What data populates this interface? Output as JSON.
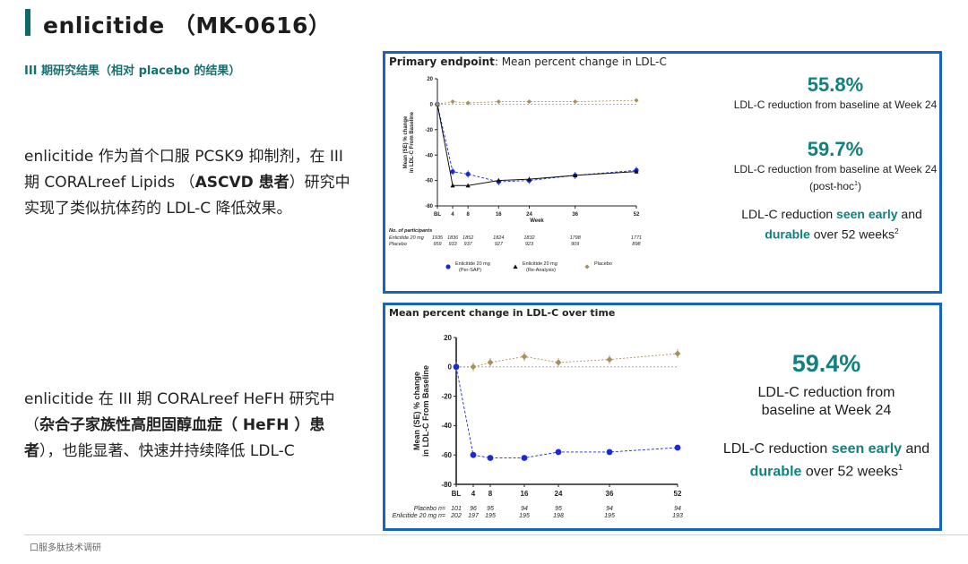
{
  "header": {
    "title": "enlicitide （MK-0616）",
    "subtitle": "III 期研究结果（相对 placebo 的结果）"
  },
  "left": {
    "para1": {
      "pre": "enlicitide 作为首个口服 PCSK9 抑制剂，在 III 期 CORALreef Lipids （",
      "bold": "ASCVD 患者",
      "post": "）研究中实现了类似抗体药的 LDL-C 降低效果。"
    },
    "para2": {
      "pre": "enlicitide 在 III 期 CORALreef HeFH 研究中（",
      "bold": "杂合子家族性高胆固醇血症（ HeFH ）患者",
      "post": "），也能显著、快速并持续降低 LDL-C"
    }
  },
  "footer": "口服多肽技术调研",
  "panel1": {
    "title_bold": "Primary endpoint",
    "title_rest": ": Mean percent change in LDL-C",
    "stat1": "55.8%",
    "stat1_text": "LDL-C reduction from baseline at Week 24",
    "stat2": "59.7%",
    "stat2_text": "LDL-C reduction from baseline at Week 24 (post-hoc",
    "stat2_sup": "1",
    "stat2_close": ")",
    "stat3_pre": "LDL-C reduction ",
    "stat3_hl1": "seen early",
    "stat3_mid": " and ",
    "stat3_hl2": "durable",
    "stat3_post": " over 52 weeks",
    "stat3_sup": "2"
  },
  "panel2": {
    "title": "Mean percent change in LDL-C over time",
    "stat1": "59.4%",
    "stat1_text": "LDL-C reduction from baseline at Week 24",
    "stat2_pre": "LDL-C reduction ",
    "stat2_hl1": "seen early",
    "stat2_mid": " and ",
    "stat2_hl2": "durable",
    "stat2_post": " over 52 weeks",
    "stat2_sup": "1"
  },
  "colors": {
    "accent": "#128080",
    "panel_border": "#1565c0",
    "enlicitide": "#1a2bd6",
    "placebo": "#a8905a",
    "reanalysis": "#111111"
  },
  "chart_data": [
    {
      "type": "line",
      "ylabel": "Mean (SE) % change in LDL-C From Baseline",
      "xlabel": "Week",
      "ylim": [
        -80,
        20
      ],
      "yticks": [
        20,
        0,
        -20,
        -40,
        -60,
        -80
      ],
      "x": [
        "BL",
        "4",
        "8",
        "16",
        "24",
        "36",
        "52"
      ],
      "x_weeks": [
        0,
        4,
        8,
        16,
        24,
        36,
        52
      ],
      "series": [
        {
          "name": "Enlicitide 20 mg (Per-SAP)",
          "values": [
            0,
            -53,
            -55,
            -61,
            -60,
            -56,
            -52
          ]
        },
        {
          "name": "Enlicitide 20 mg (Re-Analysis)",
          "values": [
            0,
            -64,
            -64,
            -60,
            -59,
            -56,
            -53
          ]
        },
        {
          "name": "Placebo",
          "values": [
            0,
            2,
            1,
            2,
            2,
            2,
            3
          ]
        }
      ],
      "participants": {
        "header": "No. of participants",
        "rows": [
          {
            "label": "Enlicitide 20 mg",
            "values": [
              "1935",
              "1836",
              "1852",
              "1824",
              "1832",
              "1798",
              "1771"
            ]
          },
          {
            "label": "Placebo",
            "values": [
              "959",
              "933",
              "937",
              "927",
              "923",
              "909",
              "898"
            ]
          }
        ]
      },
      "legend": [
        "Enlicitide 20 mg (Per-SAP)",
        "Enlicitide 20 mg (Re-Analysis)",
        "Placebo"
      ]
    },
    {
      "type": "line",
      "ylabel": "Mean (SE) % change in LDL-C From Baseline",
      "ylim": [
        -80,
        20
      ],
      "yticks": [
        20,
        0,
        -20,
        -40,
        -60,
        -80
      ],
      "x": [
        "BL",
        "4",
        "8",
        "16",
        "24",
        "36",
        "52"
      ],
      "x_weeks": [
        0,
        4,
        8,
        16,
        24,
        36,
        52
      ],
      "series": [
        {
          "name": "Placebo",
          "values": [
            0,
            0,
            3,
            7,
            3,
            5,
            9
          ]
        },
        {
          "name": "Enlicitide 20 mg",
          "values": [
            0,
            -60,
            -62,
            -62,
            -58,
            -58,
            -55
          ]
        }
      ],
      "counts": [
        {
          "label": "Placebo n=",
          "values": [
            "101",
            "96",
            "95",
            "94",
            "95",
            "94",
            "94"
          ]
        },
        {
          "label": "Enlicitide 20 mg n=",
          "values": [
            "202",
            "197",
            "195",
            "195",
            "198",
            "195",
            "193"
          ]
        }
      ]
    }
  ]
}
